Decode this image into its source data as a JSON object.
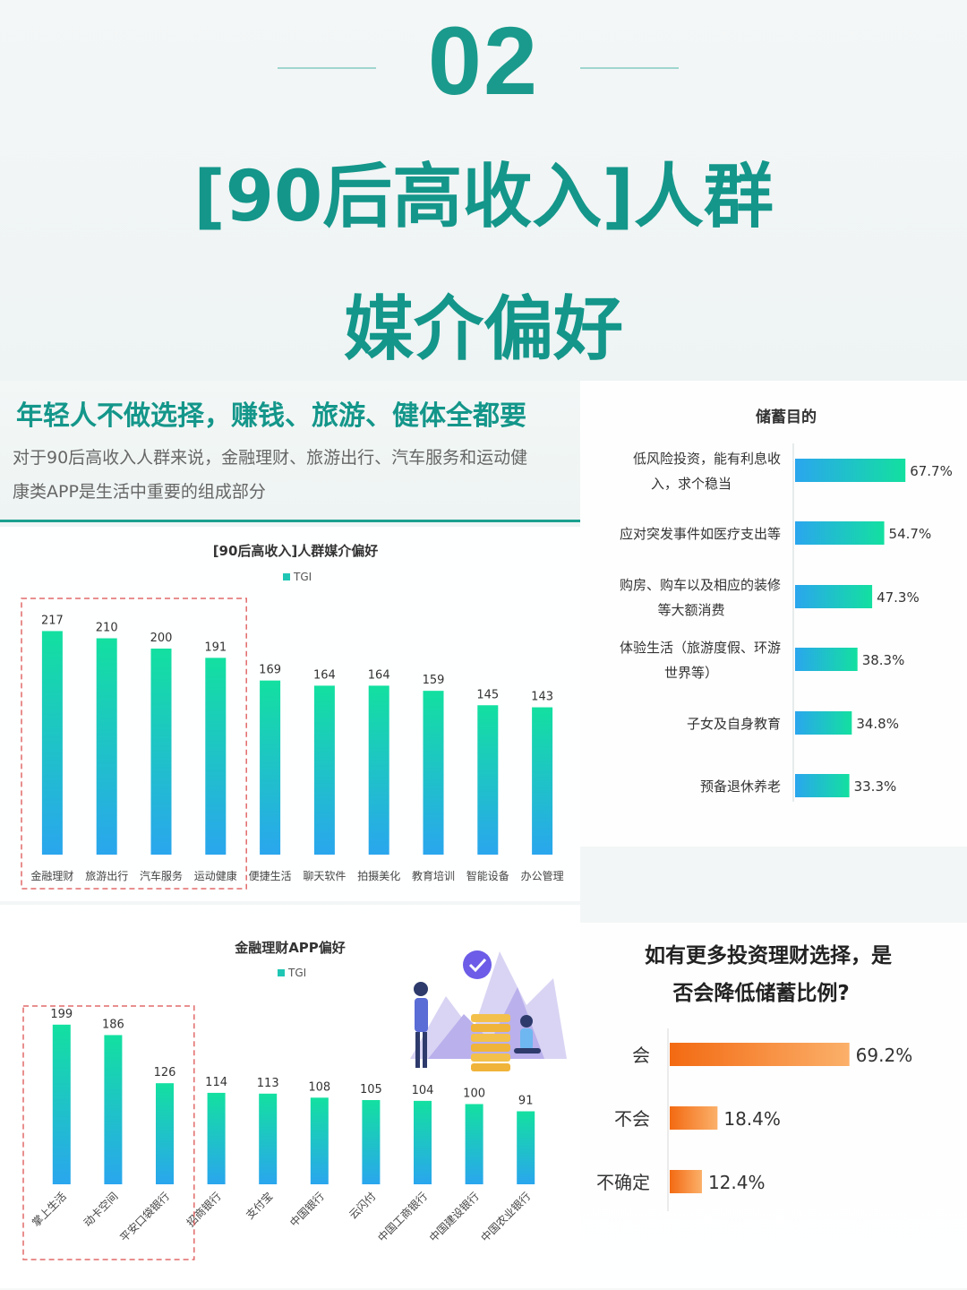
{
  "header": {
    "number": "02",
    "title_line1": "[90后高收入]人群",
    "title_line2": "媒介偏好"
  },
  "intro": {
    "heading": "年轻人不做选择，赚钱、旅游、健体全都要",
    "body_line1": "对于90后高收入人群来说，金融理财、旅游出行、汽车服务和运动健",
    "body_line2": "康类APP是生活中重要的组成部分"
  },
  "colors": {
    "teal": "#14968a",
    "bar_top": "#13e0a0",
    "bar_bottom": "#2aa6ee",
    "orange": "#f07a1e",
    "dashed_box": "#e26a6a"
  },
  "chart_data": [
    {
      "id": "media",
      "type": "bar",
      "title": "[90后高收入]人群媒介偏好",
      "legend": [
        "TGI"
      ],
      "series": [
        {
          "name": "TGI",
          "values": [
            217,
            210,
            200,
            191,
            169,
            164,
            164,
            159,
            145,
            143
          ]
        }
      ],
      "categories": [
        "金融理财",
        "旅游出行",
        "汽车服务",
        "运动健康",
        "便捷生活",
        "聊天软件",
        "拍摄美化",
        "教育培训",
        "智能设备",
        "办公管理"
      ],
      "highlighted_categories": [
        "金融理财",
        "旅游出行",
        "汽车服务",
        "运动健康"
      ],
      "ylim": [
        0,
        240
      ]
    },
    {
      "id": "savings",
      "type": "bar",
      "orientation": "horizontal",
      "title": "储蓄目的",
      "categories": [
        [
          "低风险投资，能有利息收",
          "入，求个稳当"
        ],
        [
          "应对突发事件如医疗支出等"
        ],
        [
          "购房、购车以及相应的装修",
          "等大额消费"
        ],
        [
          "体验生活（旅游度假、环游",
          "世界等）"
        ],
        [
          "子女及自身教育"
        ],
        [
          "预备退休养老"
        ]
      ],
      "values": [
        67.7,
        54.7,
        47.3,
        38.3,
        34.8,
        33.3
      ],
      "value_labels": [
        "67.7%",
        "54.7%",
        "47.3%",
        "38.3%",
        "34.8%",
        "33.3%"
      ],
      "xlim": [
        0,
        100
      ]
    },
    {
      "id": "finance",
      "type": "bar",
      "title": "金融理财APP偏好",
      "legend": [
        "TGI"
      ],
      "series": [
        {
          "name": "TGI",
          "values": [
            199,
            186,
            126,
            114,
            113,
            108,
            105,
            104,
            100,
            91
          ]
        }
      ],
      "categories": [
        "掌上生活",
        "动卡空间",
        "平安口袋银行",
        "招商银行",
        "支付宝",
        "中国银行",
        "云闪付",
        "中国工商银行",
        "中国建设银行",
        "中国农业银行"
      ],
      "highlighted_categories": [
        "掌上生活",
        "动卡空间",
        "平安口袋银行"
      ],
      "ylim": [
        0,
        220
      ]
    },
    {
      "id": "reduce",
      "type": "bar",
      "orientation": "horizontal",
      "title": [
        "如有更多投资理财选择，是",
        "否会降低储蓄比例?"
      ],
      "categories": [
        "会",
        "不会",
        "不确定"
      ],
      "values": [
        69.2,
        18.4,
        12.4
      ],
      "value_labels": [
        "69.2%",
        "18.4%",
        "12.4%"
      ],
      "xlim": [
        0,
        100
      ]
    }
  ]
}
